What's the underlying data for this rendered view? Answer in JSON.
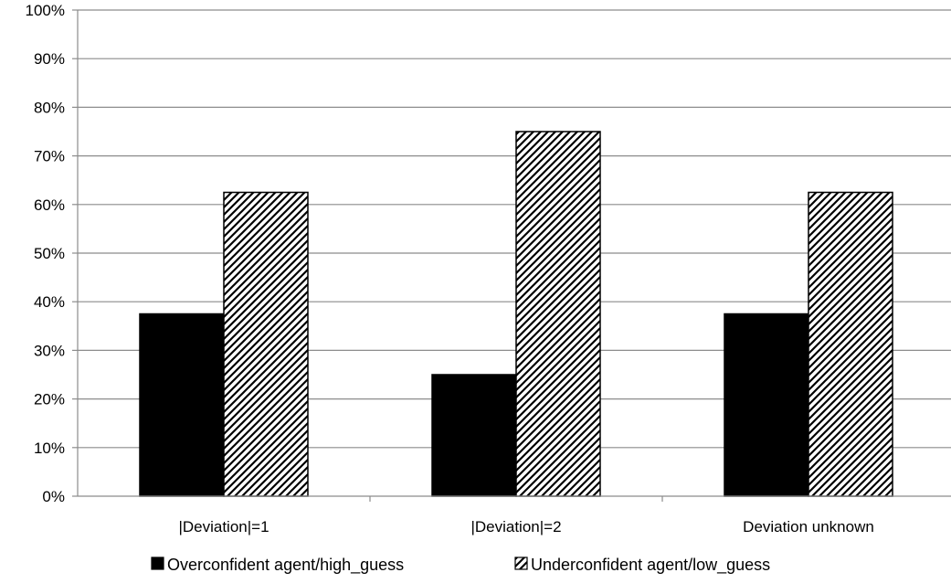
{
  "chart_data": {
    "type": "bar",
    "categories": [
      "|Deviation|=1",
      "|Deviation|=2",
      "Deviation unknown"
    ],
    "series": [
      {
        "name": "Overconfident agent/high_guess",
        "values": [
          37.5,
          25,
          37.5
        ],
        "fill": "solid",
        "color": "#000000"
      },
      {
        "name": "Underconfident agent/low_guess",
        "values": [
          62.5,
          75,
          62.5
        ],
        "fill": "hatched",
        "color": "#000000"
      }
    ],
    "ylim": [
      0,
      100
    ],
    "yticks": [
      "0%",
      "10%",
      "20%",
      "30%",
      "40%",
      "50%",
      "60%",
      "70%",
      "80%",
      "90%",
      "100%"
    ],
    "grid": true,
    "legend_position": "bottom"
  }
}
